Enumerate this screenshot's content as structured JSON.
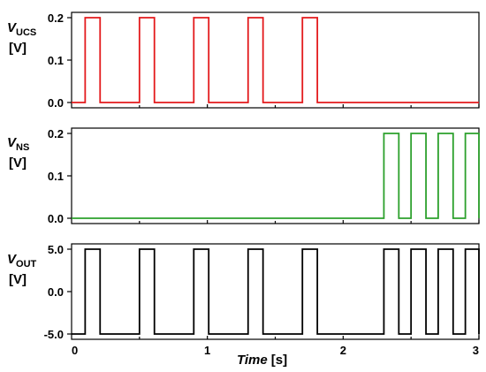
{
  "chart_data": [
    {
      "type": "line",
      "ylabel": {
        "symbol": "V",
        "subscript": "UCS",
        "unit": "[V]"
      },
      "ylim": [
        0.0,
        0.2
      ],
      "yticks": [
        "0.0",
        "0.1",
        "0.2"
      ],
      "yticks_values": [
        0.0,
        0.1,
        0.2
      ],
      "xlim": [
        0,
        3
      ],
      "color": "#e31a1c",
      "low": 0.0,
      "high": 0.2,
      "pulses": [
        [
          0.1,
          0.21
        ],
        [
          0.5,
          0.61
        ],
        [
          0.9,
          1.01
        ],
        [
          1.3,
          1.41
        ],
        [
          1.7,
          1.81
        ]
      ]
    },
    {
      "type": "line",
      "ylabel": {
        "symbol": "V",
        "subscript": "NS",
        "unit": "[V]"
      },
      "ylim": [
        0.0,
        0.2
      ],
      "yticks": [
        "0.0",
        "0.1",
        "0.2"
      ],
      "yticks_values": [
        0.0,
        0.1,
        0.2
      ],
      "xlim": [
        0,
        3
      ],
      "color": "#2ca02c",
      "low": 0.0,
      "high": 0.2,
      "pulses": [
        [
          2.3,
          2.41
        ],
        [
          2.5,
          2.61
        ],
        [
          2.7,
          2.81
        ],
        [
          2.9,
          3.0
        ]
      ]
    },
    {
      "type": "line",
      "ylabel": {
        "symbol": "V",
        "subscript": "OUT",
        "unit": "[V]"
      },
      "ylim": [
        -5.0,
        5.0
      ],
      "yticks": [
        "-5.0",
        "0.0",
        "5.0"
      ],
      "yticks_values": [
        -5.0,
        0.0,
        5.0
      ],
      "xlim": [
        0,
        3
      ],
      "color": "#000000",
      "low": -5.0,
      "high": 5.0,
      "pulses": [
        [
          0.1,
          0.21
        ],
        [
          0.5,
          0.61
        ],
        [
          0.9,
          1.01
        ],
        [
          1.3,
          1.41
        ],
        [
          1.7,
          1.81
        ],
        [
          2.3,
          2.41
        ],
        [
          2.5,
          2.61
        ],
        [
          2.7,
          2.81
        ],
        [
          2.9,
          3.0
        ]
      ],
      "xticks": [
        "0",
        "1",
        "2",
        "3"
      ],
      "xticks_values": [
        0,
        1,
        2,
        3
      ],
      "xlabel": {
        "name": "Time",
        "unit": "[s]"
      }
    }
  ]
}
